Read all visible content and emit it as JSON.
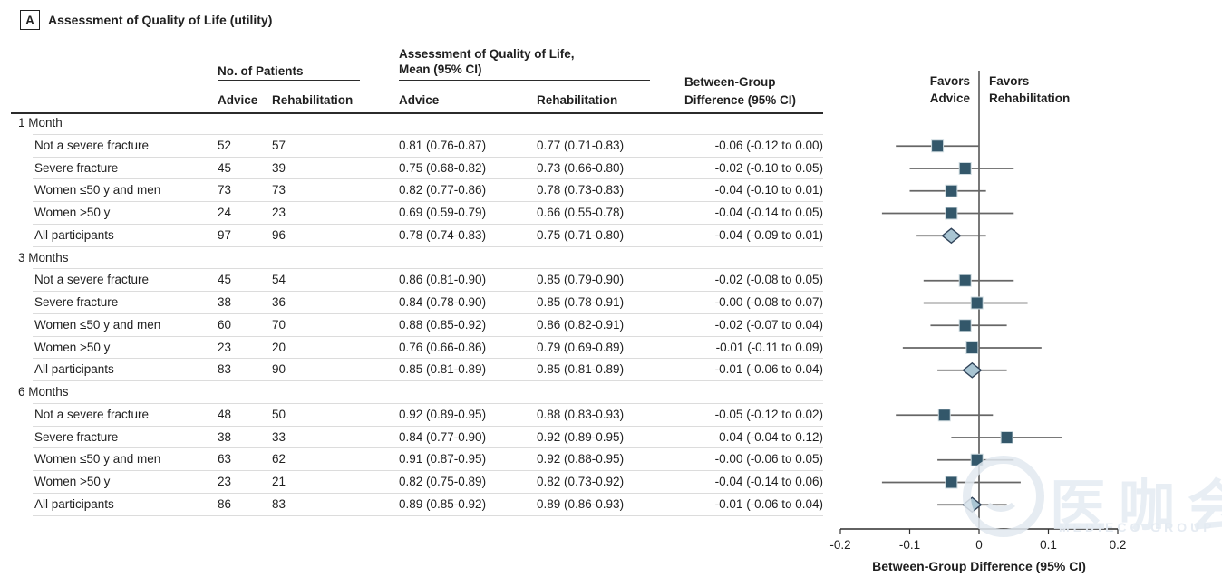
{
  "panel": {
    "label": "A",
    "title": "Assessment of Quality of Life (utility)"
  },
  "table": {
    "col_groups": {
      "patients": "No. of Patients",
      "qol_line1": "Assessment of Quality of Life,",
      "qol_line2": "Mean (95% CI)",
      "diff_line1": "Between-Group",
      "diff_line2": "Difference (95% CI)"
    },
    "sub_headers": {
      "advice": "Advice",
      "rehabilitation": "Rehabilitation"
    },
    "sections": [
      {
        "label": "1 Month",
        "rows": [
          {
            "label": "Not a severe fracture",
            "n_advice": "52",
            "n_rehab": "57",
            "mean_advice": "0.81 (0.76-0.87)",
            "mean_rehab": "0.77 (0.71-0.83)",
            "diff": "-0.06 (-0.12 to 0.00)"
          },
          {
            "label": "Severe fracture",
            "n_advice": "45",
            "n_rehab": "39",
            "mean_advice": "0.75 (0.68-0.82)",
            "mean_rehab": "0.73 (0.66-0.80)",
            "diff": "-0.02 (-0.10 to 0.05)"
          },
          {
            "label": "Women ≤50 y and men",
            "n_advice": "73",
            "n_rehab": "73",
            "mean_advice": "0.82 (0.77-0.86)",
            "mean_rehab": "0.78 (0.73-0.83)",
            "diff": "-0.04 (-0.10 to 0.01)"
          },
          {
            "label": "Women >50 y",
            "n_advice": "24",
            "n_rehab": "23",
            "mean_advice": "0.69 (0.59-0.79)",
            "mean_rehab": "0.66 (0.55-0.78)",
            "diff": "-0.04 (-0.14 to 0.05)"
          },
          {
            "label": "All participants",
            "n_advice": "97",
            "n_rehab": "96",
            "mean_advice": "0.78 (0.74-0.83)",
            "mean_rehab": "0.75 (0.71-0.80)",
            "diff": "-0.04 (-0.09 to 0.01)"
          }
        ]
      },
      {
        "label": "3 Months",
        "rows": [
          {
            "label": "Not a severe fracture",
            "n_advice": "45",
            "n_rehab": "54",
            "mean_advice": "0.86 (0.81-0.90)",
            "mean_rehab": "0.85 (0.79-0.90)",
            "diff": "-0.02 (-0.08 to 0.05)"
          },
          {
            "label": "Severe fracture",
            "n_advice": "38",
            "n_rehab": "36",
            "mean_advice": "0.84 (0.78-0.90)",
            "mean_rehab": "0.85 (0.78-0.91)",
            "diff": "-0.00 (-0.08 to 0.07)"
          },
          {
            "label": "Women ≤50 y and men",
            "n_advice": "60",
            "n_rehab": "70",
            "mean_advice": "0.88 (0.85-0.92)",
            "mean_rehab": "0.86 (0.82-0.91)",
            "diff": "-0.02 (-0.07 to 0.04)"
          },
          {
            "label": "Women >50 y",
            "n_advice": "23",
            "n_rehab": "20",
            "mean_advice": "0.76 (0.66-0.86)",
            "mean_rehab": "0.79 (0.69-0.89)",
            "diff": "-0.01 (-0.11 to 0.09)"
          },
          {
            "label": "All participants",
            "n_advice": "83",
            "n_rehab": "90",
            "mean_advice": "0.85 (0.81-0.89)",
            "mean_rehab": "0.85 (0.81-0.89)",
            "diff": "-0.01 (-0.06 to 0.04)"
          }
        ]
      },
      {
        "label": "6 Months",
        "rows": [
          {
            "label": "Not a severe fracture",
            "n_advice": "48",
            "n_rehab": "50",
            "mean_advice": "0.92 (0.89-0.95)",
            "mean_rehab": "0.88 (0.83-0.93)",
            "diff": "-0.05 (-0.12 to 0.02)"
          },
          {
            "label": "Severe fracture",
            "n_advice": "38",
            "n_rehab": "33",
            "mean_advice": "0.84 (0.77-0.90)",
            "mean_rehab": "0.92 (0.89-0.95)",
            "diff": "0.04 (-0.04 to 0.12)"
          },
          {
            "label": "Women ≤50 y and men",
            "n_advice": "63",
            "n_rehab": "62",
            "mean_advice": "0.91 (0.87-0.95)",
            "mean_rehab": "0.92 (0.88-0.95)",
            "diff": "-0.00 (-0.06 to 0.05)"
          },
          {
            "label": "Women >50 y",
            "n_advice": "23",
            "n_rehab": "21",
            "mean_advice": "0.82 (0.75-0.89)",
            "mean_rehab": "0.82 (0.73-0.92)",
            "diff": "-0.04 (-0.14 to 0.06)"
          },
          {
            "label": "All participants",
            "n_advice": "86",
            "n_rehab": "83",
            "mean_advice": "0.89 (0.85-0.92)",
            "mean_rehab": "0.89 (0.86-0.93)",
            "diff": "-0.01 (-0.06 to 0.04)"
          }
        ]
      }
    ]
  },
  "plot": {
    "favors_left_line1": "Favors",
    "favors_left_line2": "Advice",
    "favors_right_line1": "Favors",
    "favors_right_line2": "Rehabilitation"
  },
  "chart_data": {
    "type": "forest",
    "x_axis": {
      "label": "Between-Group Difference (95% CI)",
      "range": [
        -0.2,
        0.2
      ],
      "ticks": [
        -0.2,
        -0.1,
        0,
        0.1,
        0.2
      ],
      "tick_labels": [
        "-0.2",
        "-0.1",
        "0",
        "0.1",
        "0.2"
      ]
    },
    "zero_line": 0,
    "groups": [
      {
        "label": "1 Month",
        "rows": [
          {
            "label": "Not a severe fracture",
            "estimate": -0.06,
            "ci_low": -0.12,
            "ci_high": 0.0,
            "marker": "square"
          },
          {
            "label": "Severe fracture",
            "estimate": -0.02,
            "ci_low": -0.1,
            "ci_high": 0.05,
            "marker": "square"
          },
          {
            "label": "Women ≤50 y and men",
            "estimate": -0.04,
            "ci_low": -0.1,
            "ci_high": 0.01,
            "marker": "square"
          },
          {
            "label": "Women >50 y",
            "estimate": -0.04,
            "ci_low": -0.14,
            "ci_high": 0.05,
            "marker": "square"
          },
          {
            "label": "All participants",
            "estimate": -0.04,
            "ci_low": -0.09,
            "ci_high": 0.01,
            "marker": "diamond"
          }
        ]
      },
      {
        "label": "3 Months",
        "rows": [
          {
            "label": "Not a severe fracture",
            "estimate": -0.02,
            "ci_low": -0.08,
            "ci_high": 0.05,
            "marker": "square"
          },
          {
            "label": "Severe fracture",
            "estimate": -0.003,
            "ci_low": -0.08,
            "ci_high": 0.07,
            "marker": "square"
          },
          {
            "label": "Women ≤50 y and men",
            "estimate": -0.02,
            "ci_low": -0.07,
            "ci_high": 0.04,
            "marker": "square"
          },
          {
            "label": "Women >50 y",
            "estimate": -0.01,
            "ci_low": -0.11,
            "ci_high": 0.09,
            "marker": "square"
          },
          {
            "label": "All participants",
            "estimate": -0.01,
            "ci_low": -0.06,
            "ci_high": 0.04,
            "marker": "diamond"
          }
        ]
      },
      {
        "label": "6 Months",
        "rows": [
          {
            "label": "Not a severe fracture",
            "estimate": -0.05,
            "ci_low": -0.12,
            "ci_high": 0.02,
            "marker": "square"
          },
          {
            "label": "Severe fracture",
            "estimate": 0.04,
            "ci_low": -0.04,
            "ci_high": 0.12,
            "marker": "square"
          },
          {
            "label": "Women ≤50 y and men",
            "estimate": -0.003,
            "ci_low": -0.06,
            "ci_high": 0.05,
            "marker": "square"
          },
          {
            "label": "Women >50 y",
            "estimate": -0.04,
            "ci_low": -0.14,
            "ci_high": 0.06,
            "marker": "square"
          },
          {
            "label": "All participants",
            "estimate": -0.01,
            "ci_low": -0.06,
            "ci_high": 0.04,
            "marker": "diamond"
          }
        ]
      }
    ]
  },
  "colors": {
    "square": "#33576a",
    "square_edge": "#cfdbe0",
    "diamond_fill": "#a9c5d3",
    "diamond_stroke": "#2f4258",
    "ci_line": "#666666",
    "axis_line": "#2f2f2f",
    "rule_dark": "#2b2b2b",
    "rule_light": "#dcdcdc"
  },
  "watermark": {
    "cjk": "医咖会",
    "latin": "MEDIECO GROUP"
  }
}
